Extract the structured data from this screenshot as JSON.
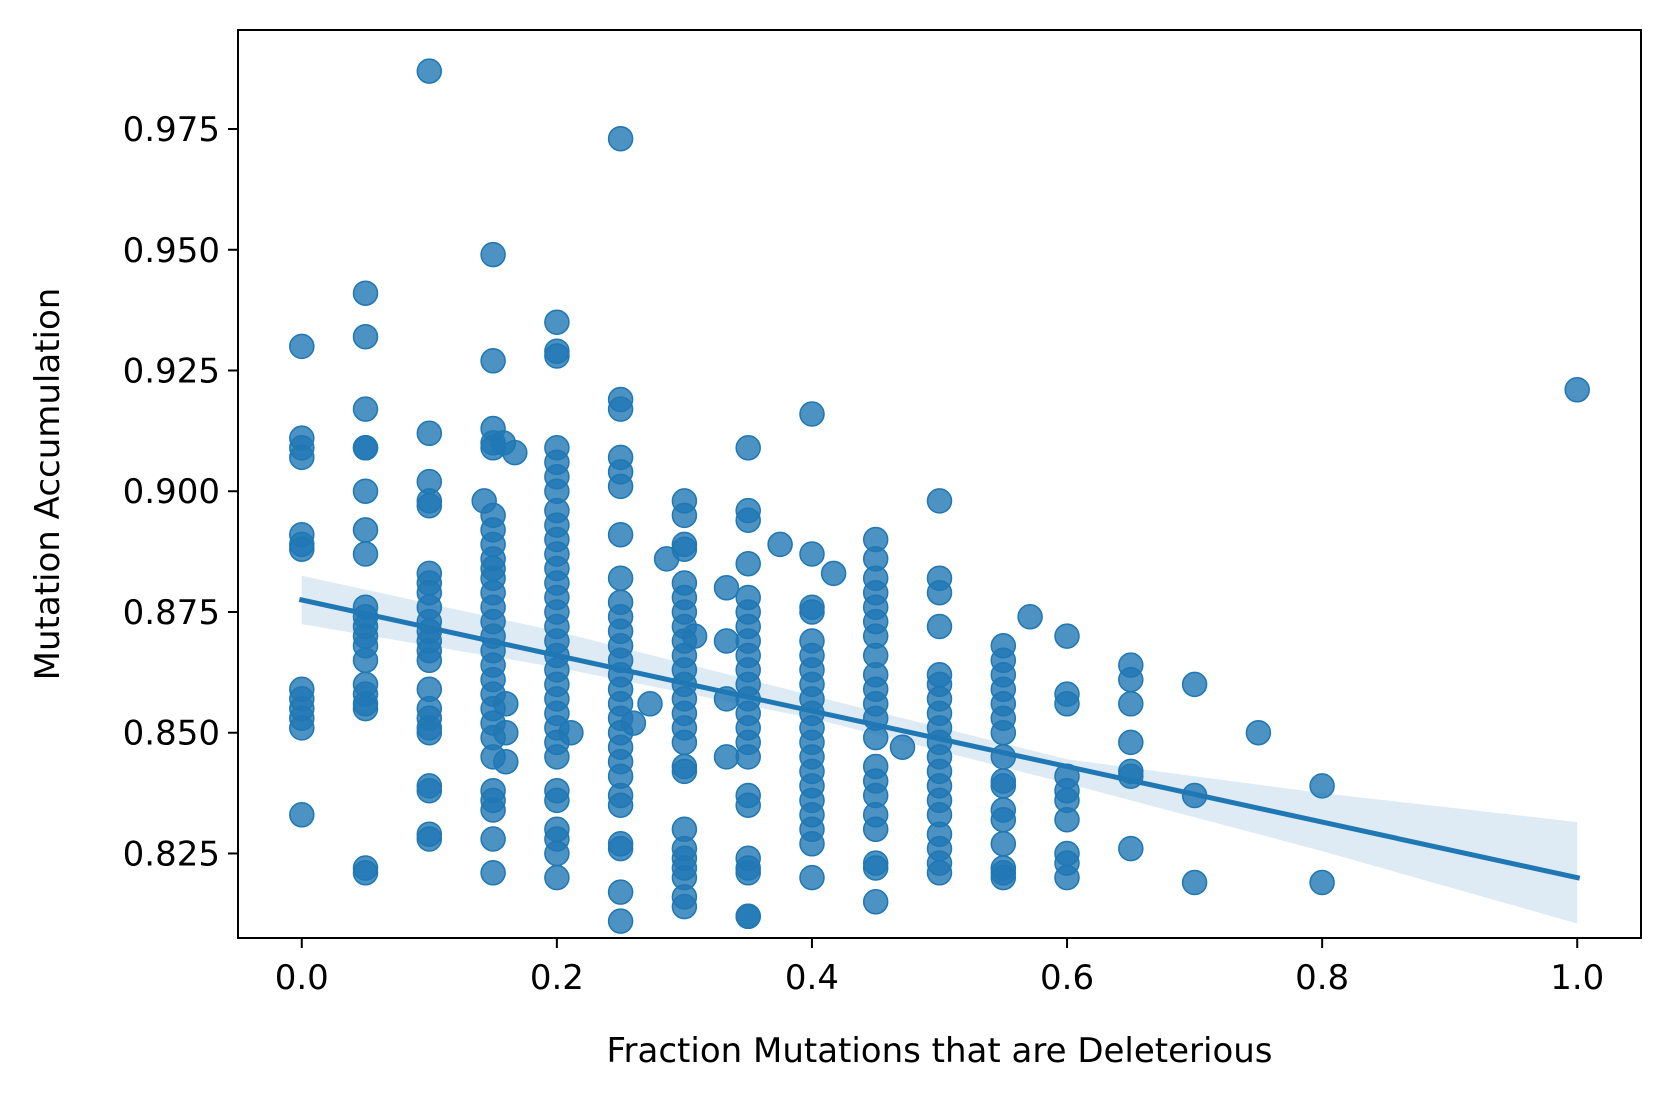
{
  "chart_data": {
    "type": "scatter",
    "title": "",
    "xlabel": "Fraction Mutations that are Deleterious",
    "ylabel": "Mutation Accumulation",
    "xlim": [
      -0.05,
      1.05
    ],
    "ylim": [
      0.8075,
      0.9955
    ],
    "x_ticks": [
      0.0,
      0.2,
      0.4,
      0.6,
      0.8,
      1.0
    ],
    "x_tick_labels": [
      "0.0",
      "0.2",
      "0.4",
      "0.6",
      "0.8",
      "1.0"
    ],
    "y_ticks": [
      0.825,
      0.85,
      0.875,
      0.9,
      0.925,
      0.95,
      0.975
    ],
    "y_tick_labels": [
      "0.825",
      "0.850",
      "0.875",
      "0.900",
      "0.925",
      "0.950",
      "0.975"
    ],
    "grid": false,
    "legend": "none",
    "point_color": "#1f77b4",
    "regression": {
      "intercept": 0.8775,
      "slope": -0.0575,
      "x_range": [
        0.0,
        1.0
      ],
      "ci_lower": [
        [
          0.0,
          0.8725
        ],
        [
          0.2,
          0.8635
        ],
        [
          0.4,
          0.853
        ],
        [
          0.6,
          0.8395
        ],
        [
          0.8,
          0.8255
        ],
        [
          1.0,
          0.8105
        ]
      ],
      "ci_upper": [
        [
          0.0,
          0.8825
        ],
        [
          0.2,
          0.871
        ],
        [
          0.4,
          0.8577
        ],
        [
          0.6,
          0.8445
        ],
        [
          0.8,
          0.8375
        ],
        [
          1.0,
          0.8315
        ]
      ]
    },
    "points": [
      [
        0.0,
        0.93
      ],
      [
        0.0,
        0.911
      ],
      [
        0.0,
        0.909
      ],
      [
        0.0,
        0.907
      ],
      [
        0.0,
        0.891
      ],
      [
        0.0,
        0.889
      ],
      [
        0.0,
        0.888
      ],
      [
        0.0,
        0.859
      ],
      [
        0.0,
        0.857
      ],
      [
        0.0,
        0.855
      ],
      [
        0.0,
        0.853
      ],
      [
        0.0,
        0.851
      ],
      [
        0.0,
        0.833
      ],
      [
        0.05,
        0.941
      ],
      [
        0.05,
        0.932
      ],
      [
        0.05,
        0.917
      ],
      [
        0.05,
        0.909
      ],
      [
        0.05,
        0.909
      ],
      [
        0.05,
        0.9
      ],
      [
        0.05,
        0.892
      ],
      [
        0.05,
        0.887
      ],
      [
        0.05,
        0.876
      ],
      [
        0.05,
        0.874
      ],
      [
        0.05,
        0.872
      ],
      [
        0.05,
        0.87
      ],
      [
        0.05,
        0.868
      ],
      [
        0.05,
        0.865
      ],
      [
        0.05,
        0.86
      ],
      [
        0.05,
        0.858
      ],
      [
        0.05,
        0.856
      ],
      [
        0.05,
        0.855
      ],
      [
        0.05,
        0.822
      ],
      [
        0.05,
        0.821
      ],
      [
        0.1,
        0.987
      ],
      [
        0.1,
        0.912
      ],
      [
        0.1,
        0.902
      ],
      [
        0.1,
        0.898
      ],
      [
        0.1,
        0.897
      ],
      [
        0.1,
        0.883
      ],
      [
        0.1,
        0.881
      ],
      [
        0.1,
        0.879
      ],
      [
        0.1,
        0.876
      ],
      [
        0.1,
        0.873
      ],
      [
        0.1,
        0.871
      ],
      [
        0.1,
        0.869
      ],
      [
        0.1,
        0.867
      ],
      [
        0.1,
        0.865
      ],
      [
        0.1,
        0.859
      ],
      [
        0.1,
        0.855
      ],
      [
        0.1,
        0.853
      ],
      [
        0.1,
        0.851
      ],
      [
        0.1,
        0.85
      ],
      [
        0.1,
        0.839
      ],
      [
        0.1,
        0.838
      ],
      [
        0.1,
        0.829
      ],
      [
        0.1,
        0.828
      ],
      [
        0.143,
        0.898
      ],
      [
        0.15,
        0.949
      ],
      [
        0.15,
        0.927
      ],
      [
        0.15,
        0.913
      ],
      [
        0.15,
        0.91
      ],
      [
        0.15,
        0.909
      ],
      [
        0.15,
        0.895
      ],
      [
        0.15,
        0.892
      ],
      [
        0.15,
        0.889
      ],
      [
        0.15,
        0.886
      ],
      [
        0.15,
        0.884
      ],
      [
        0.15,
        0.882
      ],
      [
        0.15,
        0.879
      ],
      [
        0.15,
        0.876
      ],
      [
        0.15,
        0.873
      ],
      [
        0.15,
        0.87
      ],
      [
        0.15,
        0.867
      ],
      [
        0.15,
        0.864
      ],
      [
        0.15,
        0.861
      ],
      [
        0.15,
        0.858
      ],
      [
        0.15,
        0.855
      ],
      [
        0.15,
        0.852
      ],
      [
        0.15,
        0.849
      ],
      [
        0.15,
        0.845
      ],
      [
        0.15,
        0.838
      ],
      [
        0.15,
        0.836
      ],
      [
        0.15,
        0.834
      ],
      [
        0.15,
        0.828
      ],
      [
        0.15,
        0.821
      ],
      [
        0.158,
        0.91
      ],
      [
        0.16,
        0.856
      ],
      [
        0.16,
        0.85
      ],
      [
        0.16,
        0.844
      ],
      [
        0.167,
        0.908
      ],
      [
        0.2,
        0.935
      ],
      [
        0.2,
        0.929
      ],
      [
        0.2,
        0.928
      ],
      [
        0.2,
        0.909
      ],
      [
        0.2,
        0.906
      ],
      [
        0.2,
        0.903
      ],
      [
        0.2,
        0.9
      ],
      [
        0.2,
        0.896
      ],
      [
        0.2,
        0.893
      ],
      [
        0.2,
        0.89
      ],
      [
        0.2,
        0.887
      ],
      [
        0.2,
        0.884
      ],
      [
        0.2,
        0.881
      ],
      [
        0.2,
        0.878
      ],
      [
        0.2,
        0.875
      ],
      [
        0.2,
        0.872
      ],
      [
        0.2,
        0.869
      ],
      [
        0.2,
        0.866
      ],
      [
        0.2,
        0.863
      ],
      [
        0.2,
        0.86
      ],
      [
        0.2,
        0.857
      ],
      [
        0.2,
        0.854
      ],
      [
        0.2,
        0.851
      ],
      [
        0.2,
        0.848
      ],
      [
        0.2,
        0.845
      ],
      [
        0.2,
        0.838
      ],
      [
        0.2,
        0.836
      ],
      [
        0.2,
        0.83
      ],
      [
        0.2,
        0.828
      ],
      [
        0.2,
        0.825
      ],
      [
        0.2,
        0.82
      ],
      [
        0.211,
        0.85
      ],
      [
        0.25,
        0.973
      ],
      [
        0.25,
        0.919
      ],
      [
        0.25,
        0.917
      ],
      [
        0.25,
        0.907
      ],
      [
        0.25,
        0.904
      ],
      [
        0.25,
        0.901
      ],
      [
        0.25,
        0.891
      ],
      [
        0.25,
        0.882
      ],
      [
        0.25,
        0.877
      ],
      [
        0.25,
        0.874
      ],
      [
        0.25,
        0.871
      ],
      [
        0.25,
        0.868
      ],
      [
        0.25,
        0.865
      ],
      [
        0.25,
        0.862
      ],
      [
        0.25,
        0.859
      ],
      [
        0.25,
        0.856
      ],
      [
        0.25,
        0.853
      ],
      [
        0.25,
        0.85
      ],
      [
        0.25,
        0.847
      ],
      [
        0.25,
        0.844
      ],
      [
        0.25,
        0.841
      ],
      [
        0.25,
        0.837
      ],
      [
        0.25,
        0.835
      ],
      [
        0.25,
        0.827
      ],
      [
        0.25,
        0.826
      ],
      [
        0.25,
        0.817
      ],
      [
        0.25,
        0.811
      ],
      [
        0.26,
        0.852
      ],
      [
        0.273,
        0.856
      ],
      [
        0.286,
        0.886
      ],
      [
        0.3,
        0.898
      ],
      [
        0.3,
        0.895
      ],
      [
        0.3,
        0.889
      ],
      [
        0.3,
        0.888
      ],
      [
        0.3,
        0.881
      ],
      [
        0.3,
        0.878
      ],
      [
        0.3,
        0.875
      ],
      [
        0.3,
        0.872
      ],
      [
        0.3,
        0.869
      ],
      [
        0.3,
        0.866
      ],
      [
        0.3,
        0.863
      ],
      [
        0.3,
        0.86
      ],
      [
        0.3,
        0.857
      ],
      [
        0.3,
        0.854
      ],
      [
        0.3,
        0.851
      ],
      [
        0.3,
        0.848
      ],
      [
        0.3,
        0.843
      ],
      [
        0.3,
        0.842
      ],
      [
        0.3,
        0.83
      ],
      [
        0.3,
        0.826
      ],
      [
        0.3,
        0.824
      ],
      [
        0.3,
        0.822
      ],
      [
        0.3,
        0.82
      ],
      [
        0.3,
        0.816
      ],
      [
        0.3,
        0.814
      ],
      [
        0.308,
        0.87
      ],
      [
        0.333,
        0.88
      ],
      [
        0.333,
        0.869
      ],
      [
        0.333,
        0.857
      ],
      [
        0.333,
        0.845
      ],
      [
        0.35,
        0.909
      ],
      [
        0.35,
        0.896
      ],
      [
        0.35,
        0.894
      ],
      [
        0.35,
        0.885
      ],
      [
        0.35,
        0.878
      ],
      [
        0.35,
        0.875
      ],
      [
        0.35,
        0.872
      ],
      [
        0.35,
        0.869
      ],
      [
        0.35,
        0.866
      ],
      [
        0.35,
        0.863
      ],
      [
        0.35,
        0.86
      ],
      [
        0.35,
        0.857
      ],
      [
        0.35,
        0.854
      ],
      [
        0.35,
        0.851
      ],
      [
        0.35,
        0.848
      ],
      [
        0.35,
        0.845
      ],
      [
        0.35,
        0.837
      ],
      [
        0.35,
        0.835
      ],
      [
        0.35,
        0.824
      ],
      [
        0.35,
        0.822
      ],
      [
        0.35,
        0.821
      ],
      [
        0.35,
        0.812
      ],
      [
        0.35,
        0.812
      ],
      [
        0.375,
        0.889
      ],
      [
        0.4,
        0.916
      ],
      [
        0.4,
        0.887
      ],
      [
        0.4,
        0.876
      ],
      [
        0.4,
        0.875
      ],
      [
        0.4,
        0.869
      ],
      [
        0.4,
        0.866
      ],
      [
        0.4,
        0.863
      ],
      [
        0.4,
        0.86
      ],
      [
        0.4,
        0.857
      ],
      [
        0.4,
        0.854
      ],
      [
        0.4,
        0.851
      ],
      [
        0.4,
        0.848
      ],
      [
        0.4,
        0.845
      ],
      [
        0.4,
        0.842
      ],
      [
        0.4,
        0.839
      ],
      [
        0.4,
        0.836
      ],
      [
        0.4,
        0.833
      ],
      [
        0.4,
        0.83
      ],
      [
        0.4,
        0.827
      ],
      [
        0.4,
        0.82
      ],
      [
        0.417,
        0.883
      ],
      [
        0.45,
        0.89
      ],
      [
        0.45,
        0.886
      ],
      [
        0.45,
        0.882
      ],
      [
        0.45,
        0.879
      ],
      [
        0.45,
        0.876
      ],
      [
        0.45,
        0.873
      ],
      [
        0.45,
        0.87
      ],
      [
        0.45,
        0.866
      ],
      [
        0.45,
        0.862
      ],
      [
        0.45,
        0.859
      ],
      [
        0.45,
        0.856
      ],
      [
        0.45,
        0.853
      ],
      [
        0.45,
        0.849
      ],
      [
        0.45,
        0.843
      ],
      [
        0.45,
        0.84
      ],
      [
        0.45,
        0.837
      ],
      [
        0.45,
        0.833
      ],
      [
        0.45,
        0.83
      ],
      [
        0.45,
        0.823
      ],
      [
        0.45,
        0.822
      ],
      [
        0.45,
        0.815
      ],
      [
        0.471,
        0.847
      ],
      [
        0.5,
        0.898
      ],
      [
        0.5,
        0.882
      ],
      [
        0.5,
        0.879
      ],
      [
        0.5,
        0.872
      ],
      [
        0.5,
        0.862
      ],
      [
        0.5,
        0.86
      ],
      [
        0.5,
        0.857
      ],
      [
        0.5,
        0.854
      ],
      [
        0.5,
        0.851
      ],
      [
        0.5,
        0.848
      ],
      [
        0.5,
        0.845
      ],
      [
        0.5,
        0.842
      ],
      [
        0.5,
        0.839
      ],
      [
        0.5,
        0.836
      ],
      [
        0.5,
        0.833
      ],
      [
        0.5,
        0.829
      ],
      [
        0.5,
        0.826
      ],
      [
        0.5,
        0.823
      ],
      [
        0.5,
        0.821
      ],
      [
        0.55,
        0.868
      ],
      [
        0.55,
        0.865
      ],
      [
        0.55,
        0.862
      ],
      [
        0.55,
        0.859
      ],
      [
        0.55,
        0.856
      ],
      [
        0.55,
        0.853
      ],
      [
        0.55,
        0.85
      ],
      [
        0.55,
        0.845
      ],
      [
        0.55,
        0.84
      ],
      [
        0.55,
        0.839
      ],
      [
        0.55,
        0.834
      ],
      [
        0.55,
        0.832
      ],
      [
        0.55,
        0.827
      ],
      [
        0.55,
        0.822
      ],
      [
        0.55,
        0.821
      ],
      [
        0.55,
        0.82
      ],
      [
        0.571,
        0.874
      ],
      [
        0.6,
        0.87
      ],
      [
        0.6,
        0.858
      ],
      [
        0.6,
        0.856
      ],
      [
        0.6,
        0.841
      ],
      [
        0.6,
        0.838
      ],
      [
        0.6,
        0.836
      ],
      [
        0.6,
        0.832
      ],
      [
        0.6,
        0.825
      ],
      [
        0.6,
        0.823
      ],
      [
        0.6,
        0.82
      ],
      [
        0.65,
        0.864
      ],
      [
        0.65,
        0.861
      ],
      [
        0.65,
        0.856
      ],
      [
        0.65,
        0.848
      ],
      [
        0.65,
        0.842
      ],
      [
        0.65,
        0.841
      ],
      [
        0.65,
        0.826
      ],
      [
        0.7,
        0.86
      ],
      [
        0.7,
        0.837
      ],
      [
        0.7,
        0.819
      ],
      [
        0.75,
        0.85
      ],
      [
        0.8,
        0.839
      ],
      [
        0.8,
        0.819
      ],
      [
        1.0,
        0.921
      ]
    ]
  }
}
